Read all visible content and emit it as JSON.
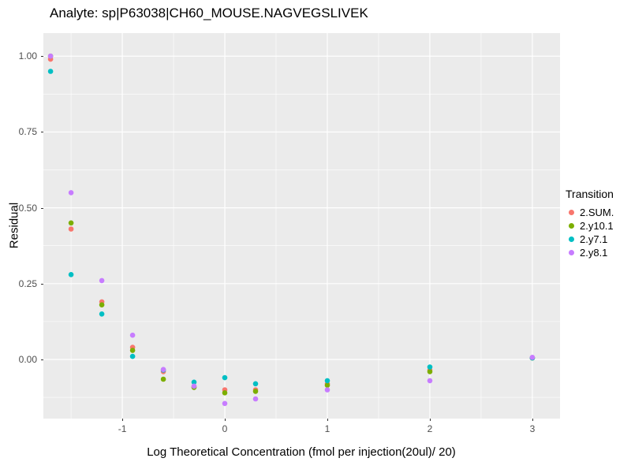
{
  "chart_data": {
    "type": "scatter",
    "title": "Analyte: sp|P63038|CH60_MOUSE.NAGVEGSLIVEK",
    "xlabel": "Log Theoretical Concentration (fmol per injection(20ul)/ 20)",
    "ylabel": "Residual",
    "legend_title": "Transition",
    "panel_bg": "#EBEBEB",
    "grid_color": "#FFFFFF",
    "x_range": [
      -1.77,
      3.27
    ],
    "y_range": [
      -0.195,
      1.076
    ],
    "x_ticks": [
      -1,
      0,
      1,
      2,
      3
    ],
    "x_tick_labels": [
      "-1",
      "0",
      "1",
      "2",
      "3"
    ],
    "y_ticks": [
      0,
      0.25,
      0.5,
      0.75,
      1
    ],
    "y_tick_labels": [
      "0.00",
      "0.25",
      "0.50",
      "0.75",
      "1.00"
    ],
    "x_minor": [
      -1.5,
      -0.5,
      0.5,
      1.5,
      2.5
    ],
    "y_minor": [
      -0.125,
      0.125,
      0.375,
      0.625,
      0.875
    ],
    "x": [
      -1.7,
      -1.5,
      -1.2,
      -0.9,
      -0.6,
      -0.3,
      0,
      0.3,
      1,
      2,
      3
    ],
    "series": [
      {
        "name": "2.SUM.",
        "color": "#F8766D",
        "values": [
          0.99,
          0.43,
          0.19,
          0.04,
          -0.04,
          -0.09,
          -0.1,
          -0.1,
          -0.08,
          -0.035,
          0.005
        ]
      },
      {
        "name": "2.y10.1",
        "color": "#7CAE00",
        "values": [
          1.0,
          0.45,
          0.18,
          0.03,
          -0.065,
          -0.092,
          -0.11,
          -0.105,
          -0.085,
          -0.04,
          0.005
        ]
      },
      {
        "name": "2.y7.1",
        "color": "#00BFC4",
        "values": [
          0.95,
          0.28,
          0.15,
          0.01,
          -0.035,
          -0.075,
          -0.06,
          -0.08,
          -0.07,
          -0.025,
          0.005
        ]
      },
      {
        "name": "2.y8.1",
        "color": "#C77CFF",
        "values": [
          1.0,
          0.55,
          0.26,
          0.08,
          -0.033,
          -0.088,
          -0.145,
          -0.13,
          -0.1,
          -0.07,
          0.007
        ]
      }
    ]
  }
}
